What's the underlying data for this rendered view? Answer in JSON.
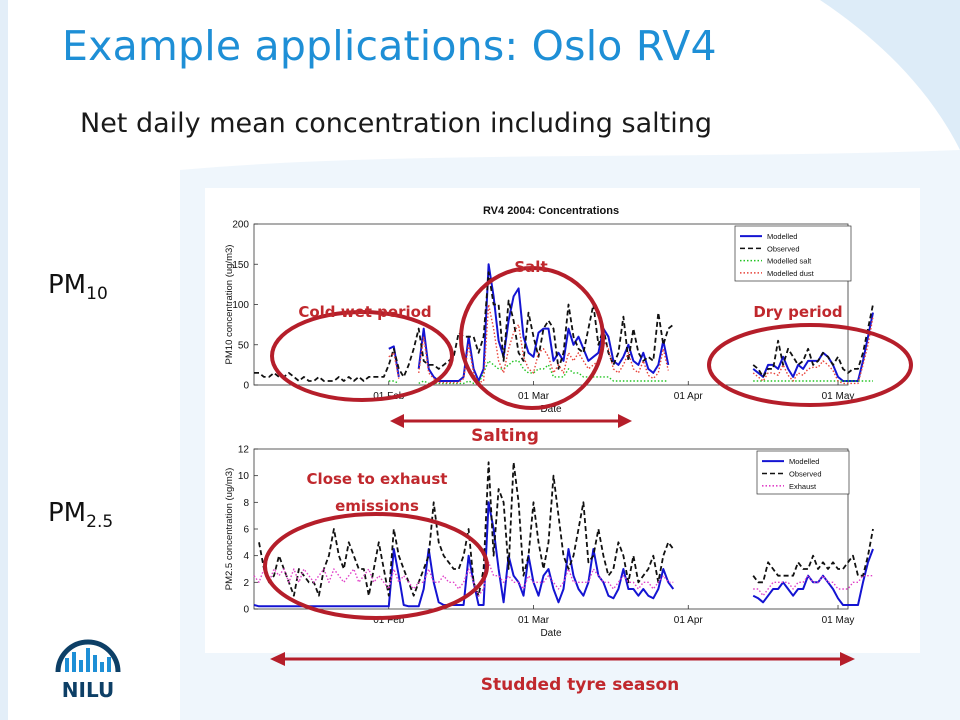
{
  "slide": {
    "title": "Example applications: Oslo RV4",
    "subtitle": "Net daily mean concentration including salting",
    "pm10_label": {
      "main": "PM",
      "sub": "10"
    },
    "pm25_label": {
      "main": "PM",
      "sub": "2.5"
    },
    "logo_text": "NILU",
    "colors": {
      "title": "#1e8fd6",
      "annotation": "#c0282d",
      "background_swoosh": "#dcecf8"
    }
  },
  "annotations": {
    "salt": "Salt",
    "cold_wet_period": "Cold wet period",
    "dry_period": "Dry period",
    "salting": "Salting",
    "close_to_exhaust_line1": "Close to exhaust",
    "close_to_exhaust_line2": "emissions",
    "studded_tyre_season": "Studded tyre season"
  },
  "chart_data": [
    {
      "type": "line",
      "title": "RV4 2004: Concentrations",
      "xlabel": "Date",
      "ylabel": "PM10 concentration (ug/m3)",
      "xlim": [
        "2004-01-05",
        "2004-05-03"
      ],
      "ylim": [
        0,
        200
      ],
      "yticks": [
        0,
        50,
        100,
        150,
        200
      ],
      "xticks": [
        "01 Feb",
        "01 Mar",
        "01 Apr",
        "01 May"
      ],
      "xtick_dates": [
        "2004-02-01",
        "2004-03-01",
        "2004-04-01",
        "2004-05-01"
      ],
      "start_date": "2004-01-05",
      "legend_position": "top-right",
      "series": [
        {
          "name": "Modelled",
          "color": "#1414d2",
          "style": "solid",
          "values": [
            null,
            null,
            null,
            null,
            null,
            null,
            null,
            null,
            null,
            null,
            null,
            null,
            null,
            null,
            null,
            null,
            null,
            null,
            null,
            null,
            null,
            null,
            null,
            null,
            null,
            null,
            null,
            45,
            48,
            10,
            null,
            null,
            null,
            20,
            70,
            20,
            10,
            5,
            5,
            5,
            5,
            5,
            10,
            60,
            20,
            5,
            20,
            150,
            110,
            55,
            35,
            80,
            110,
            120,
            60,
            40,
            35,
            65,
            70,
            70,
            30,
            40,
            30,
            70,
            50,
            60,
            45,
            30,
            35,
            40,
            70,
            60,
            30,
            25,
            35,
            50,
            30,
            25,
            40,
            20,
            15,
            25,
            55,
            25,
            null,
            null,
            null,
            null,
            null,
            null,
            null,
            null,
            null,
            null,
            null,
            null,
            null,
            null,
            null,
            null,
            20,
            15,
            10,
            25,
            25,
            20,
            35,
            20,
            10,
            25,
            20,
            30,
            30,
            30,
            40,
            35,
            25,
            10,
            5,
            5,
            5,
            5,
            30,
            60,
            90
          ]
        },
        {
          "name": "Observed",
          "color": "#111111",
          "style": "dashed",
          "values": [
            15,
            15,
            10,
            10,
            15,
            10,
            10,
            15,
            10,
            5,
            10,
            5,
            5,
            10,
            5,
            5,
            5,
            10,
            5,
            10,
            5,
            10,
            5,
            10,
            10,
            10,
            10,
            25,
            45,
            20,
            10,
            25,
            45,
            70,
            30,
            25,
            25,
            20,
            25,
            30,
            35,
            65,
            60,
            60,
            60,
            40,
            60,
            140,
            100,
            100,
            30,
            105,
            80,
            40,
            30,
            90,
            60,
            35,
            70,
            80,
            70,
            20,
            40,
            100,
            60,
            45,
            40,
            70,
            100,
            50,
            70,
            40,
            25,
            40,
            85,
            30,
            70,
            40,
            30,
            35,
            30,
            90,
            50,
            70,
            75,
            null,
            null,
            null,
            null,
            null,
            null,
            null,
            null,
            null,
            null,
            null,
            null,
            null,
            null,
            null,
            25,
            20,
            10,
            20,
            20,
            55,
            25,
            45,
            35,
            25,
            30,
            45,
            25,
            30,
            40,
            35,
            25,
            35,
            20,
            15,
            20,
            20,
            40,
            70,
            100
          ]
        },
        {
          "name": "Modelled salt",
          "color": "#22c422",
          "style": "dotted",
          "values": [
            null,
            null,
            null,
            null,
            null,
            null,
            null,
            null,
            null,
            null,
            null,
            null,
            null,
            null,
            null,
            null,
            null,
            null,
            null,
            null,
            null,
            null,
            null,
            null,
            null,
            null,
            null,
            5,
            5,
            2,
            null,
            null,
            null,
            2,
            5,
            2,
            2,
            2,
            2,
            2,
            2,
            2,
            2,
            5,
            2,
            2,
            15,
            30,
            25,
            20,
            20,
            25,
            30,
            30,
            20,
            15,
            15,
            20,
            20,
            25,
            10,
            10,
            10,
            20,
            15,
            15,
            10,
            10,
            10,
            10,
            10,
            10,
            5,
            5,
            5,
            5,
            5,
            5,
            5,
            5,
            5,
            5,
            5,
            5,
            null,
            null,
            null,
            null,
            null,
            null,
            null,
            null,
            null,
            null,
            null,
            null,
            null,
            null,
            null,
            null,
            5,
            5,
            5,
            5,
            5,
            5,
            5,
            5,
            5,
            5,
            5,
            5,
            5,
            5,
            5,
            5,
            5,
            5,
            5,
            5,
            5,
            5,
            5,
            5,
            5
          ]
        },
        {
          "name": "Modelled dust",
          "color": "#e8433a",
          "style": "dotted",
          "values": [
            null,
            null,
            null,
            null,
            null,
            null,
            null,
            null,
            null,
            null,
            null,
            null,
            null,
            null,
            null,
            null,
            null,
            null,
            null,
            null,
            null,
            null,
            null,
            null,
            null,
            null,
            null,
            35,
            40,
            8,
            null,
            null,
            null,
            15,
            60,
            15,
            8,
            3,
            3,
            3,
            3,
            3,
            8,
            50,
            15,
            3,
            5,
            100,
            70,
            30,
            15,
            45,
            65,
            75,
            35,
            20,
            15,
            40,
            45,
            35,
            15,
            25,
            15,
            40,
            30,
            40,
            30,
            20,
            25,
            30,
            55,
            45,
            20,
            15,
            25,
            40,
            20,
            15,
            30,
            12,
            8,
            15,
            45,
            18,
            null,
            null,
            null,
            null,
            null,
            null,
            null,
            null,
            null,
            null,
            null,
            null,
            null,
            null,
            null,
            null,
            15,
            10,
            5,
            15,
            15,
            12,
            25,
            12,
            5,
            15,
            12,
            20,
            22,
            22,
            30,
            25,
            18,
            5,
            2,
            2,
            2,
            2,
            25,
            50,
            85
          ]
        }
      ]
    },
    {
      "type": "line",
      "title": "",
      "xlabel": "Date",
      "ylabel": "PM2.5 concentration (ug/m3)",
      "xlim": [
        "2004-01-05",
        "2004-05-03"
      ],
      "ylim": [
        0,
        12
      ],
      "yticks": [
        0,
        2,
        4,
        6,
        8,
        10,
        12
      ],
      "xticks": [
        "01 Feb",
        "01 Mar",
        "01 Apr",
        "01 May"
      ],
      "xtick_dates": [
        "2004-02-01",
        "2004-03-01",
        "2004-04-01",
        "2004-05-01"
      ],
      "start_date": "2004-01-05",
      "legend_position": "top-right",
      "series": [
        {
          "name": "Modelled",
          "color": "#1414d2",
          "style": "solid",
          "values": [
            0.3,
            0.2,
            0.2,
            0.2,
            0.2,
            0.2,
            0.2,
            0.2,
            0.2,
            0.2,
            0.2,
            0.2,
            0.2,
            0.2,
            0.2,
            0.2,
            0.2,
            0.2,
            0.2,
            0.2,
            0.2,
            0.2,
            0.2,
            0.2,
            0.2,
            0.2,
            0.2,
            0.2,
            4.5,
            2.5,
            0.3,
            0.2,
            0.2,
            0.2,
            1.5,
            4.5,
            2,
            0.5,
            0.3,
            0.3,
            0.3,
            0.3,
            0.3,
            4,
            2,
            0.3,
            0.3,
            8,
            6,
            3,
            0.5,
            4,
            2.5,
            2,
            1,
            4,
            2,
            1,
            2.5,
            3,
            1.5,
            0.5,
            1.5,
            4.5,
            2.5,
            1.5,
            1,
            2,
            4.5,
            2.5,
            2,
            1,
            0.8,
            1.5,
            3,
            1.5,
            1.5,
            1,
            1.5,
            1,
            0.8,
            1.5,
            3,
            2,
            1.5,
            null,
            null,
            null,
            null,
            null,
            null,
            null,
            null,
            null,
            null,
            null,
            null,
            null,
            null,
            null,
            1,
            0.8,
            0.5,
            1,
            1.5,
            1.5,
            2,
            1.5,
            1,
            1.5,
            1.5,
            2.5,
            2,
            2,
            2.5,
            2,
            1.5,
            0.8,
            0.3,
            0.3,
            0.3,
            0.3,
            2,
            3.5,
            4.5
          ]
        },
        {
          "name": "Observed",
          "color": "#111111",
          "style": "dashed",
          "values": [
            null,
            5,
            3,
            2,
            2.5,
            4,
            3,
            2,
            1,
            3,
            2.5,
            2,
            2,
            1,
            3,
            4,
            6,
            4,
            3,
            5,
            4,
            3,
            3,
            1,
            3,
            5,
            3,
            1,
            6,
            4,
            3,
            2,
            1,
            2,
            3,
            4,
            8,
            5,
            4,
            3.5,
            3,
            3,
            4,
            6,
            2,
            1,
            3,
            11,
            4,
            9,
            8,
            3,
            11,
            8,
            2.5,
            4,
            8,
            5,
            3,
            5,
            10,
            7,
            4,
            3,
            4,
            6,
            8,
            3.5,
            4,
            6,
            4,
            2.5,
            3,
            5,
            4,
            2,
            4,
            2,
            2.5,
            3,
            4,
            2,
            4,
            5,
            4.5,
            null,
            null,
            null,
            null,
            null,
            null,
            null,
            null,
            null,
            null,
            null,
            null,
            null,
            null,
            null,
            2.5,
            2,
            2,
            3.5,
            3,
            2.5,
            2.5,
            2.5,
            2.5,
            3.5,
            3,
            3,
            4,
            3,
            3.5,
            3,
            3.5,
            3,
            3,
            3.5,
            4,
            2.5,
            2.5,
            4,
            6
          ]
        },
        {
          "name": "Exhaust",
          "color": "#e040c8",
          "style": "dotted",
          "values": [
            2.5,
            2,
            3,
            2,
            3,
            2.5,
            3,
            2,
            3,
            2,
            3,
            2.5,
            2,
            2.5,
            3,
            2,
            3,
            2.5,
            2,
            2.5,
            3,
            2,
            2.5,
            3,
            2,
            2.5,
            2,
            1.5,
            3,
            2,
            2.5,
            2,
            1.5,
            2,
            2,
            3,
            2,
            2,
            2.5,
            2,
            2,
            1.5,
            2,
            3,
            2,
            1,
            1.5,
            3.5,
            2.5,
            2.5,
            2,
            2.5,
            2,
            2,
            1.5,
            2.5,
            2,
            2,
            2,
            2.5,
            2,
            1.5,
            2,
            3,
            2,
            2,
            2,
            2,
            3,
            2.5,
            2,
            2,
            1.5,
            2,
            2.5,
            2,
            2,
            1.5,
            2,
            2,
            1.5,
            2,
            2.5,
            2,
            2,
            null,
            null,
            null,
            null,
            null,
            null,
            null,
            null,
            null,
            null,
            null,
            null,
            null,
            null,
            null,
            1.5,
            1.5,
            1,
            1.5,
            2,
            2,
            2,
            2,
            1.5,
            2,
            2,
            2.5,
            2,
            2,
            2.5,
            2,
            2,
            1.5,
            1.5,
            1.5,
            2,
            2,
            2.5,
            2.5,
            2.5
          ]
        }
      ]
    }
  ]
}
